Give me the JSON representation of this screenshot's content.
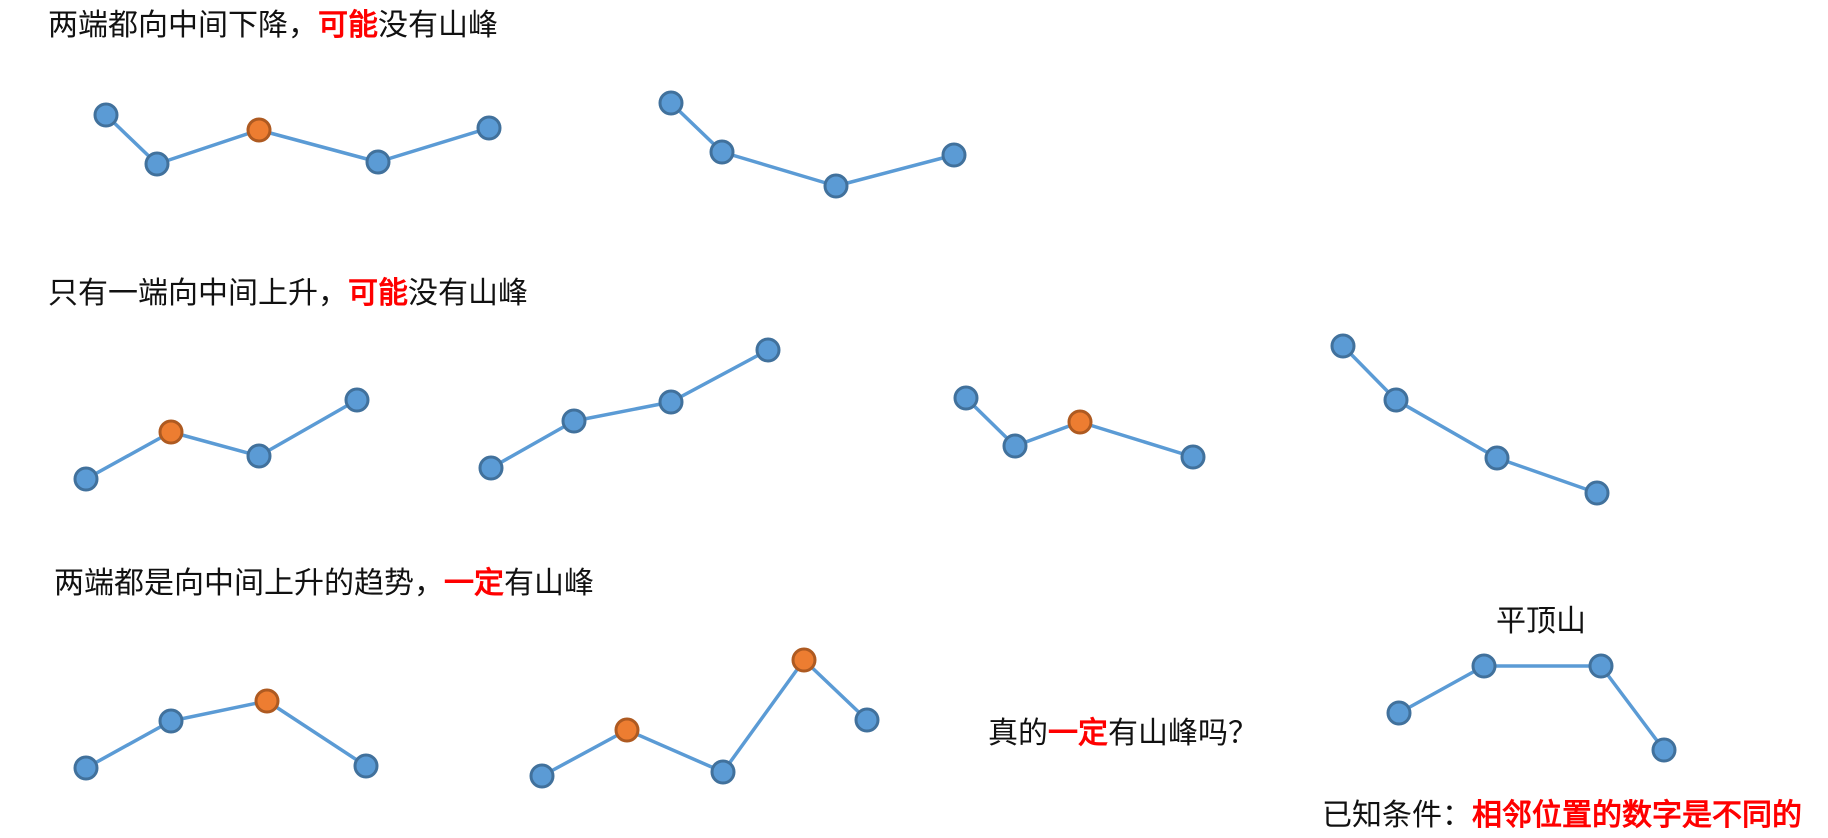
{
  "colors": {
    "line": "#5b9bd5",
    "node_fill": "#5b9bd5",
    "node_stroke": "#41719c",
    "peak_fill": "#ed7d31",
    "peak_stroke": "#ae5a21",
    "emphasis": "#ff0000",
    "text": "#111111"
  },
  "rows": [
    {
      "caption": {
        "text": "两端都向中间下降，",
        "emphasis": "可能",
        "tail": "没有山峰"
      },
      "diagrams": [
        {
          "peaks": [
            2
          ],
          "shape": "down-up-down-up"
        },
        {
          "peaks": [],
          "shape": "down-down-up"
        }
      ]
    },
    {
      "caption": {
        "text": "只有一端向中间上升，",
        "emphasis": "可能",
        "tail": "没有山峰"
      },
      "diagrams": [
        {
          "peaks": [
            1
          ],
          "shape": "up-down-up"
        },
        {
          "peaks": [],
          "shape": "up-up-up"
        },
        {
          "peaks": [
            2
          ],
          "shape": "down-up-down"
        },
        {
          "peaks": [],
          "shape": "down-down-down"
        }
      ]
    },
    {
      "caption": {
        "text": "两端都是向中间上升的趋势，",
        "emphasis": "一定",
        "tail": "有山峰"
      },
      "diagrams": [
        {
          "peaks": [
            2
          ],
          "shape": "up-up-down"
        },
        {
          "peaks": [
            1,
            3
          ],
          "shape": "up-down-up-down"
        }
      ]
    }
  ],
  "question": {
    "text": "真的",
    "emphasis": "一定",
    "tail": "有山峰吗？"
  },
  "flat_top": {
    "label": "平顶山",
    "shape": "up-flat-down"
  },
  "condition": {
    "text": "已知条件：",
    "emphasis": "相邻位置的数字是不同的"
  }
}
